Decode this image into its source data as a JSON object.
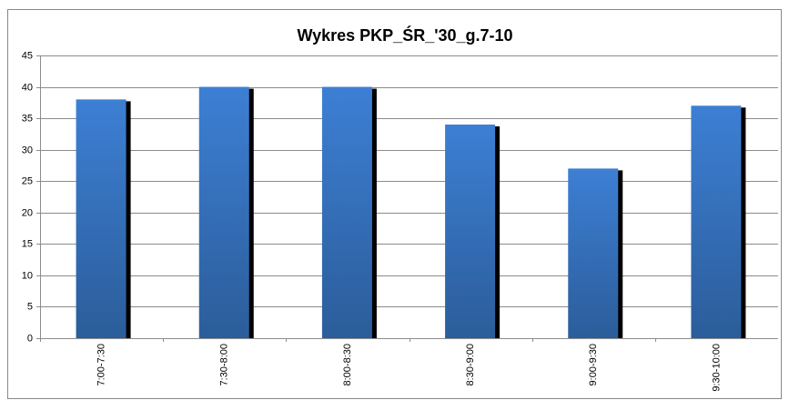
{
  "chart_data": {
    "type": "bar",
    "title": "Wykres PKP_ŚR_'30_g.7-10",
    "categories": [
      "7:00-7:30",
      "7:30-8:00",
      "8:00-8:30",
      "8:30-9:00",
      "9:00-9:30",
      "9:30-10:00"
    ],
    "values": [
      38,
      40,
      40,
      34,
      27,
      37
    ],
    "color": "#3a78c9",
    "ylim": [
      0,
      45
    ],
    "yticks": [
      0,
      5,
      10,
      15,
      20,
      25,
      30,
      35,
      40,
      45
    ],
    "grid": true
  }
}
